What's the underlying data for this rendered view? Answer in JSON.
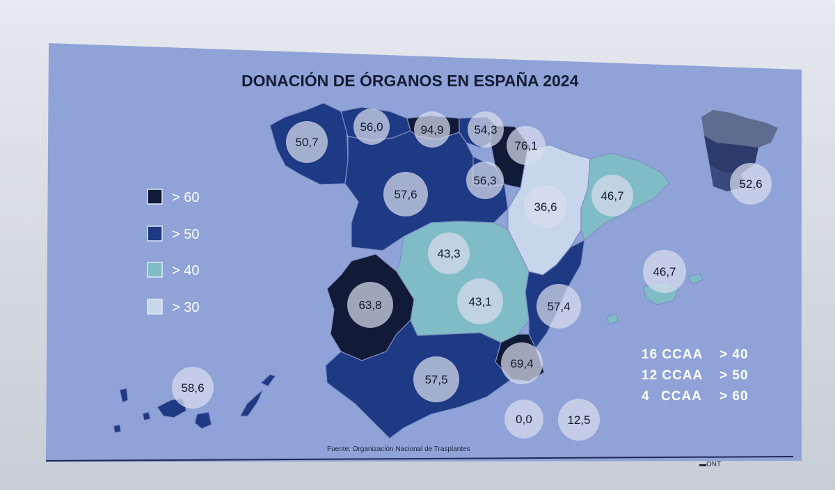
{
  "title": "DONACIÓN DE ÓRGANOS EN ESPAÑA 2024",
  "source": "Fuente: Organización Nacional de Trasplantes",
  "colors": {
    "background": "#8fa3d8",
    "gt60": "#111a36",
    "gt50": "#1f3a84",
    "gt40": "#7fbcc6",
    "gt30": "#c7d6ea"
  },
  "legend": [
    {
      "label": "> 60",
      "color_key": "gt60"
    },
    {
      "label": "> 50",
      "color_key": "gt50"
    },
    {
      "label": "> 40",
      "color_key": "gt40"
    },
    {
      "label": "> 30",
      "color_key": "gt30"
    }
  ],
  "regions": [
    {
      "value": "50,7",
      "category": "gt50"
    },
    {
      "value": "56,0",
      "category": "gt50"
    },
    {
      "value": "94,9",
      "category": "gt60"
    },
    {
      "value": "54,3",
      "category": "gt50"
    },
    {
      "value": "76,1",
      "category": "gt60"
    },
    {
      "value": "57,6",
      "category": "gt50"
    },
    {
      "value": "56,3",
      "category": "gt50"
    },
    {
      "value": "36,6",
      "category": "gt30"
    },
    {
      "value": "46,7",
      "category": "gt40"
    },
    {
      "value": "43,3",
      "category": "gt40"
    },
    {
      "value": "63,8",
      "category": "gt60"
    },
    {
      "value": "43,1",
      "category": "gt40"
    },
    {
      "value": "57,4",
      "category": "gt50"
    },
    {
      "value": "69,4",
      "category": "gt60"
    },
    {
      "value": "57,5",
      "category": "gt50"
    },
    {
      "value": "46,7",
      "category": "gt40"
    },
    {
      "value": "58,6",
      "category": "gt50"
    },
    {
      "value": "0,0",
      "category": "none"
    },
    {
      "value": "12,5",
      "category": "none"
    }
  ],
  "national": {
    "value": "52,6"
  },
  "summary": [
    {
      "count": "16 CCAA",
      "threshold": "> 40"
    },
    {
      "count": "12 CCAA",
      "threshold": "> 50"
    },
    {
      "count": "4",
      "count_suffix": "CCAA",
      "threshold": "> 60"
    }
  ]
}
